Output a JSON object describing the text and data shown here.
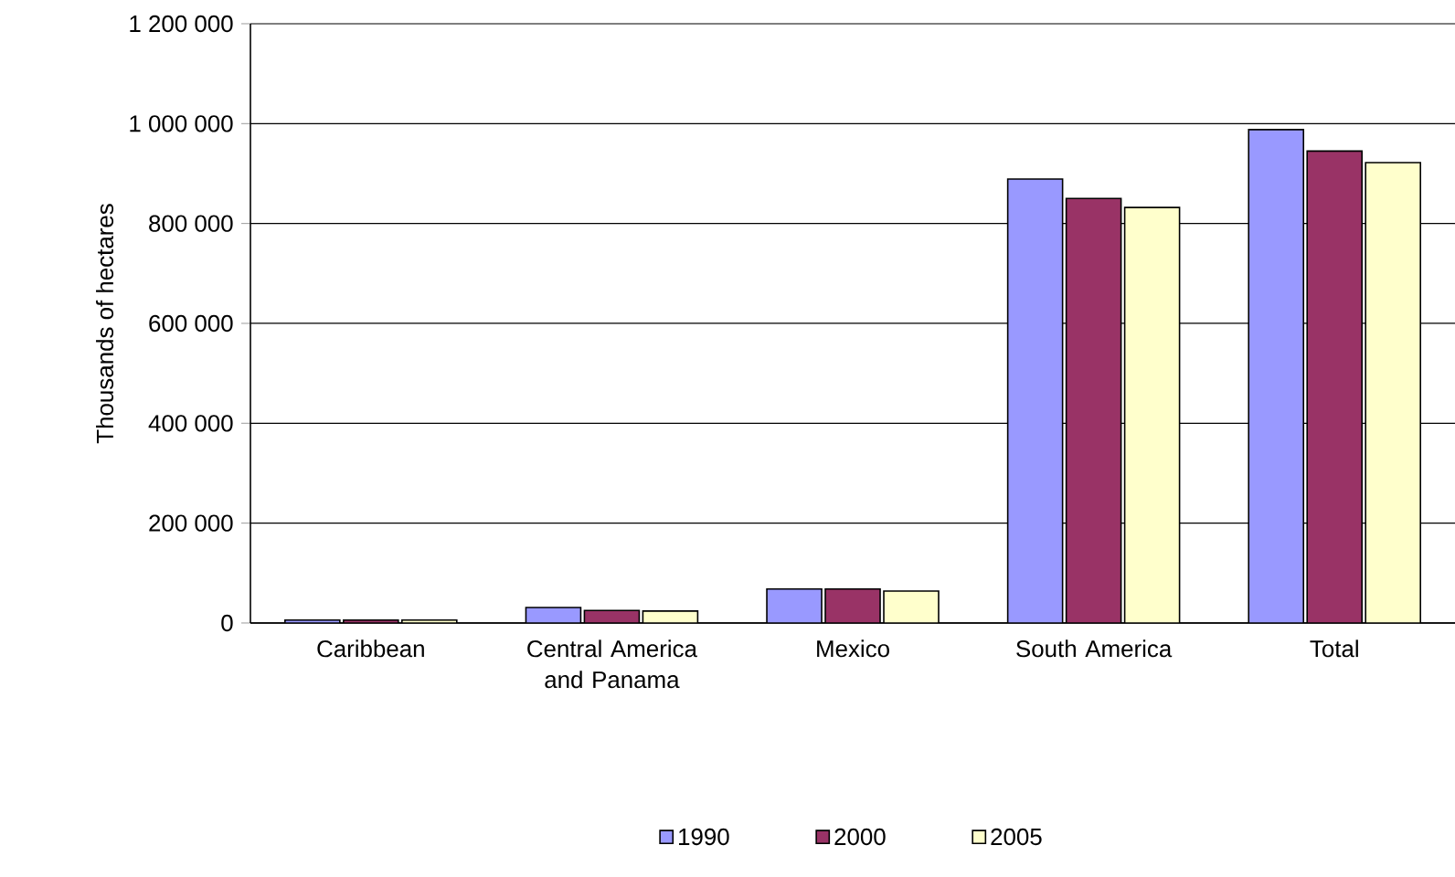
{
  "chart_data": {
    "type": "bar",
    "ylabel": "Thousands of hectares",
    "categories": [
      "Caribbean",
      "Central America and Panama",
      "Mexico",
      "South America",
      "Total"
    ],
    "series": [
      {
        "name": "1990",
        "color": "#9999ff",
        "values": [
          6000,
          31000,
          68000,
          889000,
          988000
        ]
      },
      {
        "name": "2000",
        "color": "#993366",
        "values": [
          6000,
          25000,
          68000,
          850000,
          945000
        ]
      },
      {
        "name": "2005",
        "color": "#ffffcc",
        "values": [
          6000,
          24000,
          64000,
          832000,
          922000
        ]
      }
    ],
    "ylim": [
      0,
      1200000
    ],
    "yticks": [
      {
        "value": 0,
        "label": "0"
      },
      {
        "value": 200000,
        "label": "200 000"
      },
      {
        "value": 400000,
        "label": "400 000"
      },
      {
        "value": 600000,
        "label": "600 000"
      },
      {
        "value": 800000,
        "label": "800 000"
      },
      {
        "value": 1000000,
        "label": "1 000 000"
      },
      {
        "value": 1200000,
        "label": "1 200 000"
      }
    ],
    "grid": "y",
    "legend": "bottom"
  }
}
